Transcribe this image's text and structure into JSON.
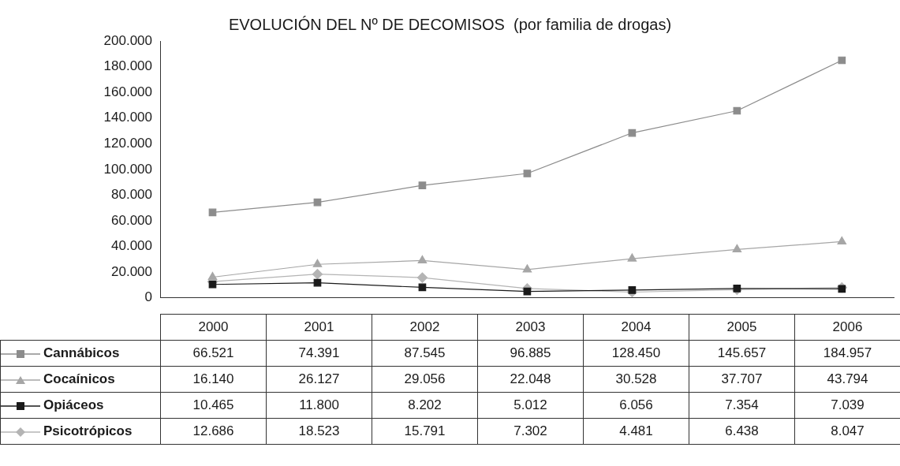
{
  "chart_data": {
    "type": "line",
    "title": "EVOLUCIÓN DEL Nº DE DECOMISOS  (por familia de drogas)",
    "categories": [
      "2000",
      "2001",
      "2002",
      "2003",
      "2004",
      "2005",
      "2006"
    ],
    "series": [
      {
        "name": "Cannábicos",
        "color": "#8c8c8c",
        "marker": "square",
        "values": [
          66521,
          74391,
          87545,
          96885,
          128450,
          145657,
          184957
        ],
        "value_labels": [
          "66.521",
          "74.391",
          "87.545",
          "96.885",
          "128.450",
          "145.657",
          "184.957"
        ]
      },
      {
        "name": "Cocaínicos",
        "color": "#a6a6a6",
        "marker": "triangle",
        "values": [
          16140,
          26127,
          29056,
          22048,
          30528,
          37707,
          43794
        ],
        "value_labels": [
          "16.140",
          "26.127",
          "29.056",
          "22.048",
          "30.528",
          "37.707",
          "43.794"
        ]
      },
      {
        "name": "Opiáceos",
        "color": "#1a1a1a",
        "marker": "square",
        "values": [
          10465,
          11800,
          8202,
          5012,
          6056,
          7354,
          7039
        ],
        "value_labels": [
          "10.465",
          "11.800",
          "8.202",
          "5.012",
          "6.056",
          "7.354",
          "7.039"
        ]
      },
      {
        "name": "Psicotrópicos",
        "color": "#b4b4b4",
        "marker": "diamond",
        "values": [
          12686,
          18523,
          15791,
          7302,
          4481,
          6438,
          8047
        ],
        "value_labels": [
          "12.686",
          "18.523",
          "15.791",
          "7.302",
          "4.481",
          "6.438",
          "8.047"
        ]
      }
    ],
    "ylim": [
      0,
      200000
    ],
    "yticks": [
      {
        "value": 0,
        "label": "0"
      },
      {
        "value": 20000,
        "label": "20.000"
      },
      {
        "value": 40000,
        "label": "40.000"
      },
      {
        "value": 60000,
        "label": "60.000"
      },
      {
        "value": 80000,
        "label": "80.000"
      },
      {
        "value": 100000,
        "label": "100.000"
      },
      {
        "value": 120000,
        "label": "120.000"
      },
      {
        "value": 140000,
        "label": "140.000"
      },
      {
        "value": 160000,
        "label": "160.000"
      },
      {
        "value": 180000,
        "label": "180.000"
      },
      {
        "value": 200000,
        "label": "200.000"
      }
    ],
    "grid": false,
    "legend": "bottom",
    "line_style": "solid"
  }
}
